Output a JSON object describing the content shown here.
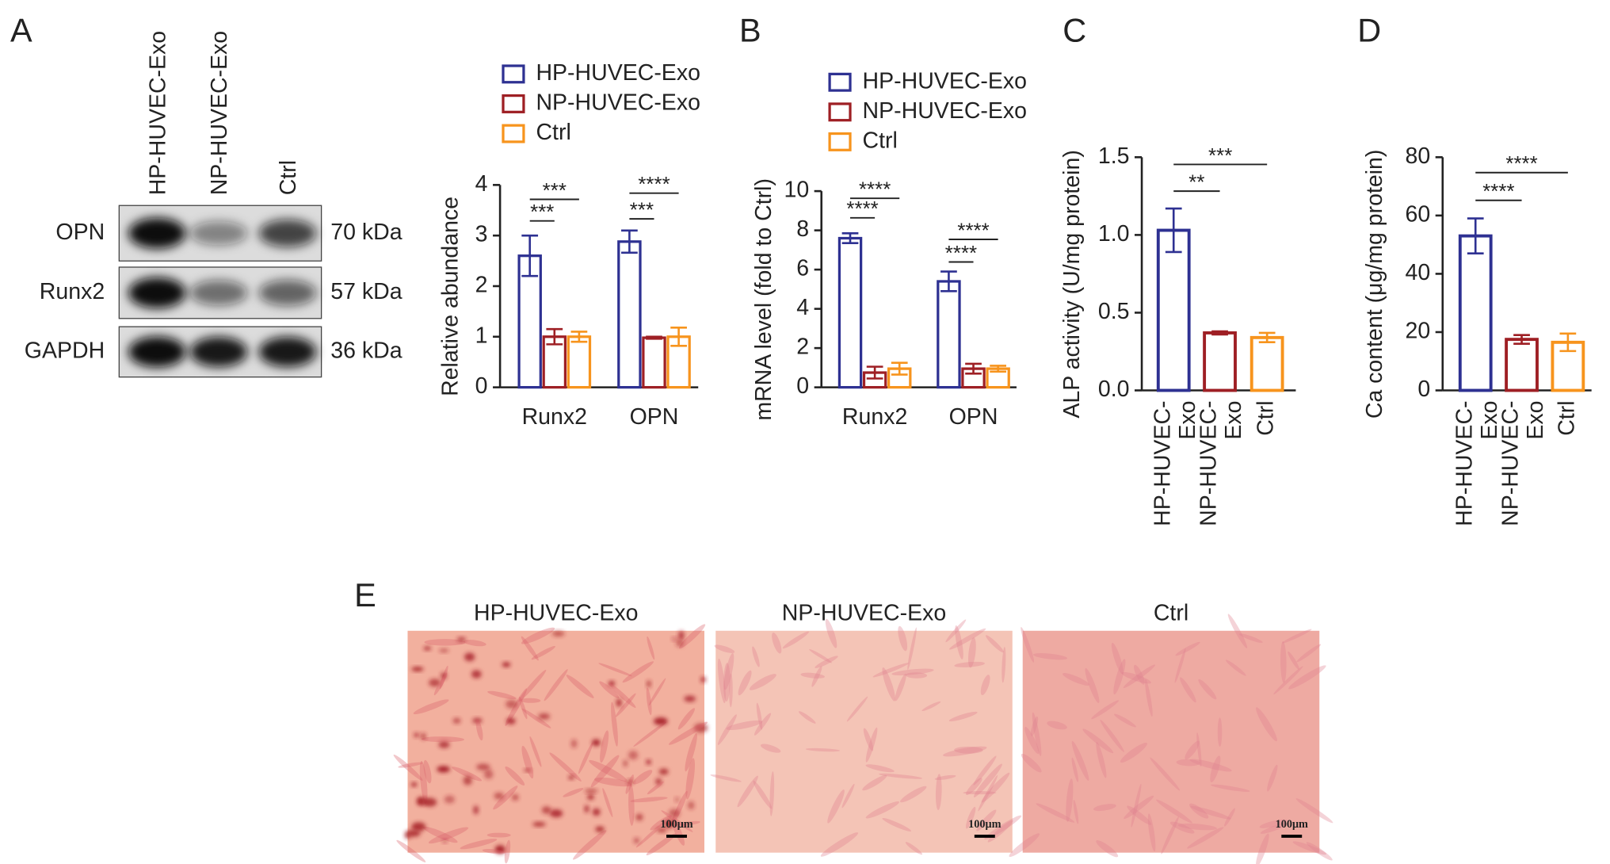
{
  "panels": {
    "a": "A",
    "b": "B",
    "c": "C",
    "d": "D",
    "e": "E"
  },
  "blot": {
    "lanes": [
      "HP-HUVEC-Exo",
      "NP-HUVEC-Exo",
      "Ctrl"
    ],
    "rows": [
      {
        "protein": "OPN",
        "size": "70 kDa"
      },
      {
        "protein": "Runx2",
        "size": "57 kDa"
      },
      {
        "protein": "GAPDH",
        "size": "36 kDa"
      }
    ]
  },
  "chart_data": [
    {
      "type": "grouped_bar",
      "ylabel": "Relative abundance",
      "categories": [
        "Runx2",
        "OPN"
      ],
      "series": [
        {
          "name": "HP-HUVEC-Exo",
          "color": "#2e3192",
          "values": [
            2.6,
            2.88
          ],
          "errors": [
            0.4,
            0.22
          ]
        },
        {
          "name": "NP-HUVEC-Exo",
          "color": "#9e1f24",
          "values": [
            1.0,
            0.98
          ],
          "errors": [
            0.15,
            0.02
          ]
        },
        {
          "name": "Ctrl",
          "color": "#f7941d",
          "values": [
            1.0,
            1.0
          ],
          "errors": [
            0.1,
            0.18
          ]
        }
      ],
      "ylim": [
        0,
        4
      ],
      "yticks": [
        0,
        1,
        2,
        3,
        4
      ],
      "legend": true,
      "annotations": [
        "***",
        "***",
        "***",
        "****"
      ]
    },
    {
      "type": "grouped_bar",
      "ylabel": "mRNA level (fold to Ctrl)",
      "categories": [
        "Runx2",
        "OPN"
      ],
      "series": [
        {
          "name": "HP-HUVEC-Exo",
          "color": "#2e3192",
          "values": [
            7.6,
            5.4
          ],
          "errors": [
            0.25,
            0.5
          ]
        },
        {
          "name": "NP-HUVEC-Exo",
          "color": "#9e1f24",
          "values": [
            0.75,
            0.95
          ],
          "errors": [
            0.3,
            0.25
          ]
        },
        {
          "name": "Ctrl",
          "color": "#f7941d",
          "values": [
            0.95,
            0.95
          ],
          "errors": [
            0.3,
            0.15
          ]
        }
      ],
      "ylim": [
        0,
        10
      ],
      "yticks": [
        0,
        2,
        4,
        6,
        8,
        10
      ],
      "legend": true,
      "annotations": [
        "****",
        "****",
        "****",
        "****"
      ]
    },
    {
      "type": "bar",
      "ylabel": "ALP activity (U/mg protein)",
      "categories": [
        "HP-HUVEC-Exo",
        "NP-HUVEC-Exo",
        "Ctrl"
      ],
      "values": [
        1.03,
        0.37,
        0.34
      ],
      "errors": [
        0.14,
        0.01,
        0.03
      ],
      "colors": [
        "#2e3192",
        "#9e1f24",
        "#f7941d"
      ],
      "ylim": [
        0,
        1.5
      ],
      "yticks": [
        {
          "value": 0,
          "label": "0.0"
        },
        0.5,
        {
          "value": 1,
          "label": "1.0"
        },
        1.5
      ],
      "annotations": [
        "**",
        "***"
      ]
    },
    {
      "type": "bar",
      "ylabel": "Ca content (μg/mg protein)",
      "categories": [
        "HP-HUVEC-Exo",
        "NP-HUVEC-Exo",
        "Ctrl"
      ],
      "values": [
        53,
        17.5,
        16.5
      ],
      "errors": [
        6,
        1.5,
        3
      ],
      "colors": [
        "#2e3192",
        "#9e1f24",
        "#f7941d"
      ],
      "ylim": [
        0,
        80
      ],
      "yticks": [
        0,
        20,
        40,
        60,
        80
      ],
      "annotations": [
        "****",
        "****"
      ]
    }
  ],
  "staining": {
    "panels": [
      {
        "title": "HP-HUVEC-Exo",
        "scale": "100μm"
      },
      {
        "title": "NP-HUVEC-Exo",
        "scale": "100μm"
      },
      {
        "title": "Ctrl",
        "scale": "100μm"
      }
    ]
  }
}
